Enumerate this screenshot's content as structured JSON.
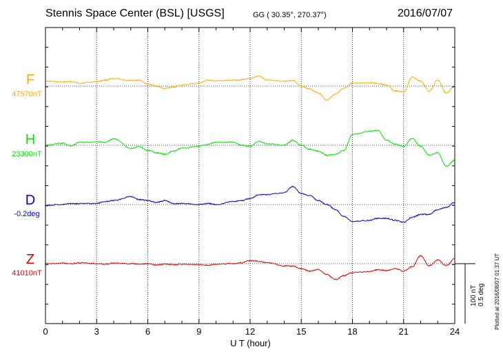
{
  "header": {
    "title": "Stennis Space Center (BSL)  [USGS]",
    "coords": "GG ( 30.35°, 270.37°)",
    "date": "2016/07/07"
  },
  "channels": [
    {
      "letter": "F",
      "baseline": "47570nT",
      "color": "#ffaa00"
    },
    {
      "letter": "H",
      "baseline": "23300nT",
      "color": "#00e600"
    },
    {
      "letter": "D",
      "baseline": "-0.2deg",
      "color": "#0000cc"
    },
    {
      "letter": "Z",
      "baseline": "41010nT",
      "color": "#e60000"
    }
  ],
  "scale": {
    "nt": "100 nT",
    "deg": "0.5 deg"
  },
  "plotted": "Plotted at 2016/08/07 01:37 UT",
  "chart_data": {
    "type": "line",
    "title": "Stennis Space Center (BSL)  [USGS]",
    "xlabel": "U T (hour)",
    "xlim": [
      0,
      24
    ],
    "xticks": [
      "0",
      "3",
      "6",
      "9",
      "12",
      "15",
      "18",
      "21",
      "24"
    ],
    "grid": true,
    "series": [
      {
        "name": "F",
        "baseline": "47570nT",
        "unit": "nT",
        "x": [
          0,
          1,
          1.5,
          2,
          3,
          3.5,
          4,
          5,
          5.5,
          6,
          6.5,
          7,
          7.5,
          8,
          9,
          9.5,
          10,
          11,
          11.5,
          12,
          12.5,
          13,
          14,
          14.5,
          15,
          15.5,
          16,
          16.5,
          17,
          17.5,
          18,
          19,
          19.5,
          20,
          20.5,
          21,
          21.5,
          22,
          22.5,
          23,
          23.5,
          24
        ],
        "y": [
          10,
          8,
          9,
          6,
          9,
          12,
          15,
          11,
          12,
          4,
          0,
          -5,
          -2,
          2,
          6,
          12,
          10,
          12,
          13,
          15,
          20,
          12,
          10,
          11,
          0,
          -6,
          -14,
          -28,
          -16,
          -5,
          6,
          7,
          5,
          2,
          -10,
          -12,
          18,
          10,
          -10,
          12,
          -14,
          0
        ]
      },
      {
        "name": "H",
        "baseline": "23300nT",
        "unit": "nT",
        "x": [
          0,
          1,
          1.5,
          2,
          3,
          3.5,
          4,
          5,
          5.5,
          6,
          6.5,
          7,
          7.5,
          8,
          9,
          9.5,
          10,
          11,
          11.5,
          12,
          12.5,
          13,
          14,
          14.5,
          15,
          15.5,
          16,
          16.5,
          17,
          17.5,
          18,
          19,
          19.5,
          20,
          20.5,
          21,
          21.5,
          22,
          22.5,
          23,
          23.5,
          24
        ],
        "y": [
          0,
          4,
          -1,
          6,
          7,
          6,
          13,
          -6,
          -3,
          -10,
          -15,
          -18,
          -12,
          -6,
          -2,
          2,
          6,
          6,
          0,
          -2,
          8,
          3,
          0,
          10,
          0,
          -8,
          -12,
          -20,
          -18,
          -10,
          22,
          28,
          30,
          10,
          2,
          -2,
          14,
          -2,
          -20,
          -15,
          -42,
          -30
        ]
      },
      {
        "name": "D",
        "baseline": "-0.2deg",
        "unit": "deg",
        "x": [
          0,
          1,
          1.5,
          2,
          3,
          3.5,
          4,
          5,
          5.5,
          6,
          6.5,
          7,
          7.5,
          8,
          9,
          9.5,
          10,
          11,
          11.5,
          12,
          12.5,
          13,
          14,
          14.5,
          15,
          15.5,
          16,
          16.5,
          17,
          17.5,
          18,
          19,
          19.5,
          20,
          20.5,
          21,
          21.5,
          22,
          22.5,
          23,
          23.5,
          24
        ],
        "y": [
          -0.01,
          0,
          0.01,
          0.01,
          0.01,
          0.03,
          0.04,
          0.08,
          0.05,
          0.04,
          0.02,
          0.04,
          0.01,
          0.01,
          0,
          0.01,
          0,
          0.03,
          0.04,
          0.06,
          0.1,
          0.1,
          0.12,
          0.18,
          0.11,
          0.09,
          0.04,
          0,
          -0.05,
          -0.12,
          -0.17,
          -0.16,
          -0.14,
          -0.14,
          -0.16,
          -0.18,
          -0.13,
          -0.1,
          -0.1,
          -0.05,
          -0.03,
          0.02
        ]
      },
      {
        "name": "Z",
        "baseline": "41010nT",
        "unit": "nT",
        "x": [
          0,
          1,
          1.5,
          2,
          3,
          3.5,
          4,
          5,
          5.5,
          6,
          6.5,
          7,
          7.5,
          8,
          9,
          9.5,
          10,
          11,
          11.5,
          12,
          12.5,
          13,
          14,
          14.5,
          15,
          15.5,
          16,
          16.5,
          17,
          17.5,
          18,
          19,
          19.5,
          20,
          20.5,
          21,
          21.5,
          22,
          22.5,
          23,
          23.5,
          24
        ],
        "y": [
          0,
          1,
          0,
          2,
          0,
          -1,
          1,
          0,
          -1,
          0,
          -3,
          -1,
          -2,
          -1,
          -2,
          -3,
          -1,
          0,
          2,
          6,
          5,
          2,
          -4,
          -5,
          -10,
          -15,
          -12,
          -22,
          -32,
          -24,
          -18,
          -16,
          -12,
          -14,
          -10,
          -15,
          -6,
          16,
          -4,
          8,
          -4,
          10
        ]
      }
    ]
  }
}
